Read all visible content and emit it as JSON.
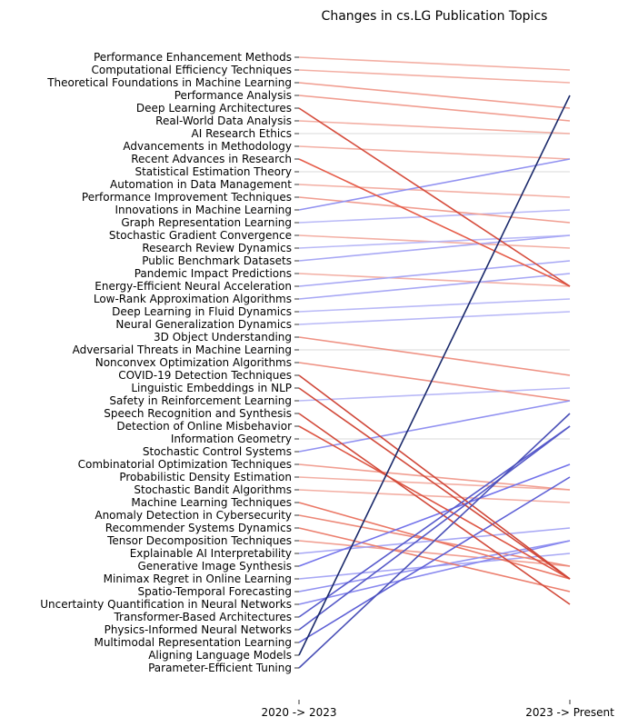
{
  "chart_data": {
    "type": "slope",
    "title": "Changes in cs.LG Publication Topics",
    "columns": [
      "2020 -> 2023",
      "2023 -> Present"
    ],
    "left_order": [
      "Performance Enhancement Methods",
      "Computational Efficiency Techniques",
      "Theoretical Foundations in Machine Learning",
      "Performance Analysis",
      "Deep Learning Architectures",
      "Real-World Data Analysis",
      "AI Research Ethics",
      "Advancements in Methodology",
      "Recent Advances in Research",
      "Statistical Estimation Theory",
      "Automation in Data Management",
      "Performance Improvement Techniques",
      "Innovations in Machine Learning",
      "Graph Representation Learning",
      "Stochastic Gradient Convergence",
      "Research Review Dynamics",
      "Public Benchmark Datasets",
      "Pandemic Impact Predictions",
      "Energy-Efficient Neural Acceleration",
      "Low-Rank Approximation Algorithms",
      "Deep Learning in Fluid Dynamics",
      "Neural Generalization Dynamics",
      "3D Object Understanding",
      "Adversarial Threats in Machine Learning",
      "Nonconvex Optimization Algorithms",
      "COVID-19 Detection Techniques",
      "Linguistic Embeddings in NLP",
      "Safety in Reinforcement Learning",
      "Speech Recognition and Synthesis",
      "Detection of Online Misbehavior",
      "Information Geometry",
      "Stochastic Control Systems",
      "Combinatorial Optimization Techniques",
      "Probabilistic Density Estimation",
      "Stochastic Bandit Algorithms",
      "Machine Learning Techniques",
      "Anomaly Detection in Cybersecurity",
      "Recommender Systems Dynamics",
      "Tensor Decomposition Techniques",
      "Explainable AI Interpretability",
      "Generative Image Synthesis",
      "Minimax Regret in Online Learning",
      "Spatio-Temporal Forecasting",
      "Uncertainty Quantification in Neural Networks",
      "Transformer-Based Architectures",
      "Physics-Informed Neural Networks",
      "Multimodal Representation Learning",
      "Aligning Language Models",
      "Parameter-Efficient Tuning"
    ],
    "rank_change": [
      -1,
      -1,
      -2,
      -2,
      -14,
      -1,
      0,
      -1,
      -10,
      0,
      -1,
      -2,
      4,
      1,
      -1,
      1,
      2,
      -1,
      2,
      2,
      1,
      1,
      -3,
      0,
      -3,
      -16,
      -15,
      1,
      -15,
      -12,
      0,
      4,
      -2,
      -1,
      -1,
      -6,
      -4,
      -5,
      -2,
      2,
      8,
      2,
      4,
      5,
      15,
      16,
      13,
      44,
      20
    ],
    "left_rank": "position in 2020 -> 2023 list, 0 = top; right rank = left_rank - rank_change",
    "color_scale": "seismic-like: rising topics blue, falling topics red, intensity by magnitude",
    "colors": {
      "rise": "#1b2a6b",
      "fall": "#8b0000",
      "neutral": "#e6e6e6"
    }
  }
}
